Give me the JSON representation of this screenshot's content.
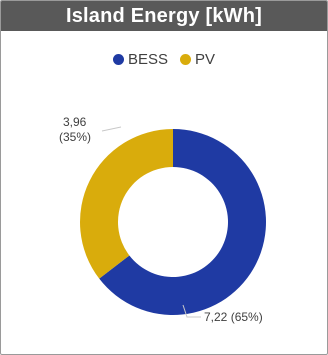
{
  "panel": {
    "title": "Island Energy [kWh]"
  },
  "chart_data": {
    "type": "pie",
    "title": "Island Energy [kWh]",
    "donut": true,
    "legend_position": "top",
    "series": [
      {
        "name": "BESS",
        "value": 7.22,
        "percent": 65,
        "color": "#1f3aa3",
        "label_value": "7,22",
        "label_percent": "(65%)"
      },
      {
        "name": "PV",
        "value": 3.96,
        "percent": 35,
        "color": "#d9ac0c",
        "label_value": "3,96",
        "label_percent": "(35%)"
      }
    ]
  }
}
